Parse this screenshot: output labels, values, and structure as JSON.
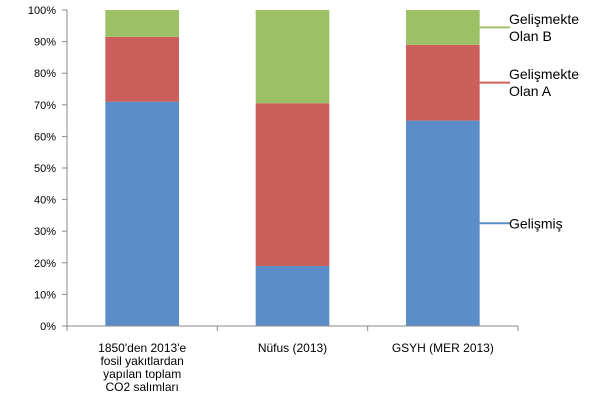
{
  "chart_data": {
    "type": "bar",
    "stacked": true,
    "percent_scale": true,
    "categories": [
      "1850'den 2013'e fosil yakıtlardan yapılan toplam CO2 salımları",
      "Nüfus (2013)",
      "GSYH (MER 2013)"
    ],
    "category_lines": [
      [
        "1850'den 2013'e",
        "fosil yakıtlardan",
        "yapılan toplam",
        "CO2 salımları"
      ],
      [
        "Nüfus (2013)"
      ],
      [
        "GSYH (MER 2013)"
      ]
    ],
    "series": [
      {
        "name": "Gelişmiş",
        "legend_lines": [
          "Gelişmiş"
        ],
        "color": "#5b8ec8",
        "values": [
          71,
          19,
          65
        ]
      },
      {
        "name": "Gelişmekte Olan A",
        "legend_lines": [
          "Gelişmekte",
          "Olan A"
        ],
        "color": "#cc5f5a",
        "values": [
          20.5,
          51.5,
          24
        ]
      },
      {
        "name": "Gelişmekte Olan B",
        "legend_lines": [
          "Gelişmekte",
          "Olan B"
        ],
        "color": "#9cc164",
        "values": [
          8.5,
          29.5,
          11
        ]
      }
    ],
    "y_ticks": [
      "0%",
      "10%",
      "20%",
      "30%",
      "40%",
      "50%",
      "60%",
      "70%",
      "80%",
      "90%",
      "100%"
    ],
    "ylim": [
      0,
      100
    ],
    "grid": false,
    "legend_position": "right",
    "axis_color": "#8a8a8a"
  }
}
